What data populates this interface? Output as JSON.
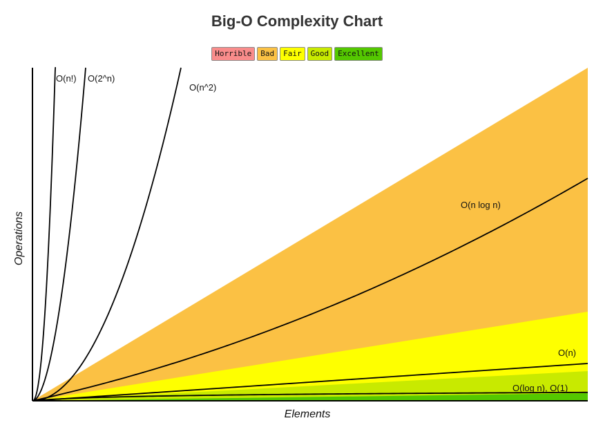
{
  "chart_data": {
    "type": "area",
    "title": "Big-O Complexity Chart",
    "xlabel": "Elements",
    "ylabel": "Operations",
    "grid": false,
    "legend_placement": "top-center",
    "legend": [
      {
        "name": "Horrible",
        "color": "#f98c8b"
      },
      {
        "name": "Bad",
        "color": "#fbc144"
      },
      {
        "name": "Fair",
        "color": "#feff00"
      },
      {
        "name": "Good",
        "color": "#c8ea00"
      },
      {
        "name": "Excellent",
        "color": "#54c800"
      }
    ],
    "curves": [
      {
        "name": "O(n!)",
        "type": "factorial"
      },
      {
        "name": "O(2^n)",
        "type": "exponential"
      },
      {
        "name": "O(n^2)",
        "type": "quadratic"
      },
      {
        "name": "O(n log n)",
        "type": "nlogn"
      },
      {
        "name": "O(n)",
        "type": "linear"
      },
      {
        "name": "O(log n), O(1)",
        "type": "log"
      }
    ]
  }
}
